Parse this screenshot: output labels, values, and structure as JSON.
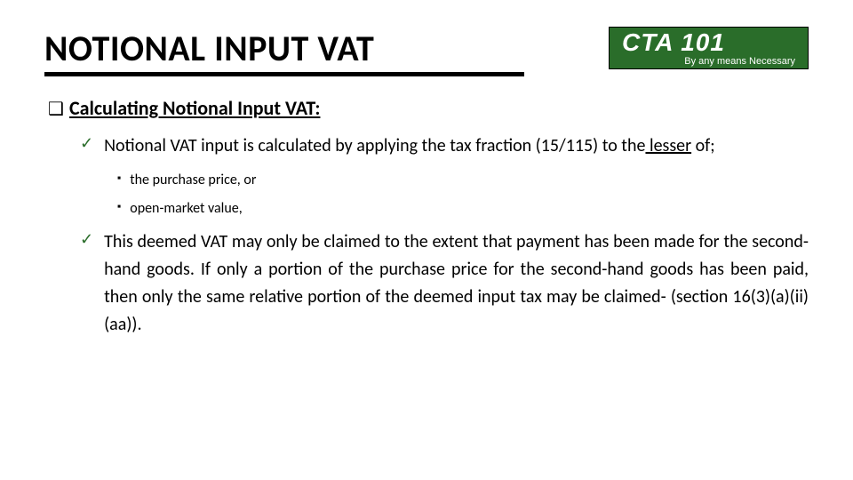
{
  "title": "NOTIONAL INPUT VAT",
  "logo": {
    "main": "CTA 101",
    "sub": "By any means Necessary"
  },
  "subheading": "Calculating Notional Input VAT:",
  "check1_pre": "Notional VAT input is calculated by applying the tax fraction (15/115) to the",
  "check1_ul": " lesser",
  "check1_post": " of;",
  "sub1": "the purchase price, or",
  "sub2": "open-market value,",
  "check2": "This deemed VAT may only be claimed to the extent that payment has been made for the second-hand goods. If only a portion of the purchase price for the second-hand goods has been paid, then only the same relative portion of the deemed input tax may be claimed- (section 16(3)(a)(ii)(aa))."
}
